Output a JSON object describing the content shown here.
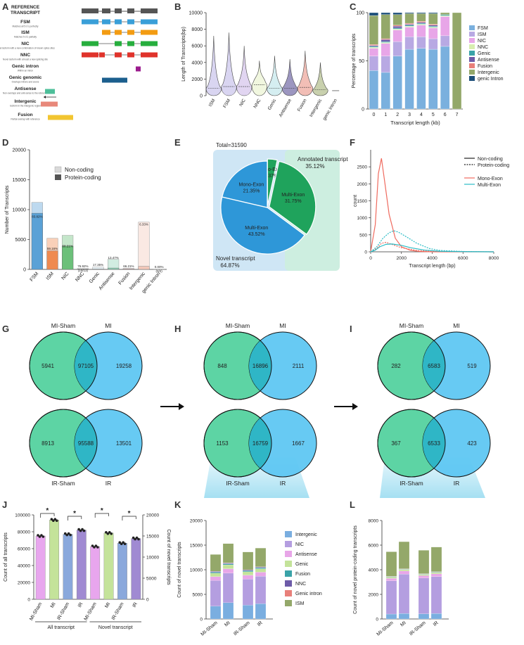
{
  "panel_labels": [
    "A",
    "B",
    "C",
    "D",
    "E",
    "F",
    "G",
    "H",
    "I",
    "J",
    "K",
    "L"
  ],
  "panelA": {
    "title": "REFERENCE TRANSCRIPT",
    "rows": [
      {
        "name": "FSM",
        "desc": "Matches all 5-3 ́s perfectly",
        "color": "#3a9fd8"
      },
      {
        "name": "ISM",
        "desc": "Matches 5-3 ́s partially",
        "color": "#f39c12"
      },
      {
        "name": "NIC",
        "desc": "Novel isoform with a new combination of known splice sites",
        "color": "#27ae3e"
      },
      {
        "name": "NNC",
        "desc": "Novel isoform with at least a new splicing site",
        "color": "#e0332b"
      },
      {
        "name": "Genic intron",
        "desc": "Within an intron",
        "color": "#9b1b8e"
      },
      {
        "name": "Genic genomic",
        "desc": "Overlaps introns and exons",
        "color": "#1c5f8e"
      },
      {
        "name": "Antisense",
        "desc": "Non-overlaps and anti-sense to the reference",
        "color": "#4dbf9a"
      },
      {
        "name": "Intergenic",
        "desc": "Isoform in the intergenic region",
        "color": "#e8887a"
      },
      {
        "name": "Fusion",
        "desc": "Partial overlap with reference",
        "color": "#f2c531"
      }
    ]
  },
  "chart_data": [
    {
      "id": "B",
      "type": "violin",
      "title": "",
      "ylabel": "Length of Transcripts(bp)",
      "ylim": [
        0,
        10000
      ],
      "yticks": [
        "0",
        "2000",
        "4000",
        "6000",
        "8000",
        "10000"
      ],
      "categories": [
        "ISM",
        "FSM",
        "NIC",
        "NNC",
        "Genic",
        "Antisense",
        "Fusion",
        "Intergenic",
        "genic Intron"
      ],
      "medians": [
        900,
        1100,
        1100,
        1300,
        900,
        900,
        1000,
        700,
        600
      ],
      "max": [
        7200,
        7600,
        6000,
        4200,
        4800,
        4400,
        5400,
        4000,
        700
      ],
      "colors": [
        "#b9b3e6",
        "#b9b3e6",
        "#c9b3e6",
        "#e6f0c4",
        "#b3e0e6",
        "#4a3f8c",
        "#e8887a",
        "#9aaa6a",
        "#888888"
      ]
    },
    {
      "id": "C",
      "type": "stacked_bar",
      "ylabel": "Percentage of transcripts",
      "xlabel": "Transcript length (kb)",
      "categories": [
        "0",
        "1",
        "2",
        "3",
        "4",
        "5",
        "6",
        "7"
      ],
      "ylim": [
        0,
        100
      ],
      "yticks": [
        "0",
        "50",
        "100"
      ],
      "series": [
        {
          "name": "FSM",
          "color": "#7ab0de",
          "values": [
            40,
            38,
            55,
            62,
            63,
            62,
            65,
            0
          ]
        },
        {
          "name": "ISM",
          "color": "#b8a9e3",
          "values": [
            15,
            17,
            15,
            13,
            12,
            11,
            11,
            0
          ]
        },
        {
          "name": "NIC",
          "color": "#e8a6e8",
          "values": [
            8,
            13,
            12,
            10,
            12,
            11,
            20,
            0
          ]
        },
        {
          "name": "NNC",
          "color": "#d8eeb0",
          "values": [
            1,
            1,
            1,
            1,
            1,
            1,
            1,
            0
          ]
        },
        {
          "name": "Genic",
          "color": "#3aa3a8",
          "values": [
            1,
            1,
            1,
            1,
            1,
            1,
            1,
            0
          ]
        },
        {
          "name": "Antisense",
          "color": "#6d5ba8",
          "values": [
            1,
            2,
            2,
            1,
            1,
            1,
            0,
            0
          ]
        },
        {
          "name": "Fusion",
          "color": "#e8807a",
          "values": [
            1,
            1,
            1,
            1,
            1,
            1,
            0,
            0
          ]
        },
        {
          "name": "Intergenic",
          "color": "#94a86a",
          "values": [
            30,
            25,
            11,
            10,
            8,
            11,
            2,
            100
          ]
        },
        {
          "name": "genic Intron",
          "color": "#1d4f7a",
          "values": [
            3,
            2,
            2,
            1,
            1,
            1,
            0,
            0
          ]
        }
      ],
      "legend": [
        "FSM",
        "ISM",
        "NIC",
        "NNC",
        "Genic",
        "Antisense",
        "Fusion",
        "Intergenic",
        "genic Intron"
      ]
    },
    {
      "id": "D",
      "type": "bar",
      "ylabel": "Number of Transcripts",
      "ylim": [
        0,
        20000
      ],
      "yticks": [
        "0",
        "5000",
        "10000",
        "15000",
        "20000"
      ],
      "legend": [
        "Non-coding",
        "Protein-coding"
      ],
      "categories": [
        "FSM",
        "ISM",
        "NIC",
        "NNC",
        "Genic",
        "Antisense",
        "Fusion",
        "Intergenic",
        "genic Intron"
      ],
      "total": [
        11200,
        5200,
        5700,
        130,
        400,
        1700,
        150,
        7900,
        10
      ],
      "coding": [
        9400,
        3100,
        3900,
        100,
        60,
        230,
        100,
        500,
        0
      ],
      "colors": [
        "#5aa1d6",
        "#ef8a50",
        "#6cc07a",
        "#cccccc",
        "#c8dfe8",
        "#8fcfb5",
        "#e8b3b0",
        "#f2c7b9",
        "#cccccc"
      ],
      "labels": [
        "83.82%",
        "59.16%",
        "68.21%",
        "76.92% (10/13)",
        "17.35%",
        "13.47%",
        "66.21%",
        "6.33%",
        "0.00% (0/2)"
      ]
    },
    {
      "id": "E",
      "type": "pie",
      "title": "Total=31590",
      "slices": [
        {
          "label": "Mono-Exon",
          "value": 3.37
        },
        {
          "label": "Multi-Exon",
          "value": 31.75
        },
        {
          "label": "Multi-Exon",
          "value": 43.52
        },
        {
          "label": "Mono-Exon",
          "value": 21.35
        }
      ],
      "slice_pcts": [
        "3.37%",
        "31.75%",
        "43.52%",
        "21.35%"
      ],
      "annotated": {
        "label": "Annotated transcript",
        "pct": "35.12%"
      },
      "novel": {
        "label": "Novel transcript",
        "pct": "64.87%"
      }
    },
    {
      "id": "F",
      "type": "line",
      "xlabel": "Transcript length (bp)",
      "ylabel": "count",
      "xlim": [
        0,
        8000
      ],
      "ylim": [
        0,
        3000
      ],
      "xticks": [
        "0",
        "2000",
        "4000",
        "6000",
        "8000"
      ],
      "yticks": [
        "0",
        "500",
        "1000",
        "1500",
        "2000",
        "2500"
      ],
      "legend": [
        "Non-coding",
        "Protein-coding",
        "Mono-Exon",
        "Multi-Exon"
      ],
      "series": [
        {
          "name": "Mono-Exon non-coding",
          "x": [
            0,
            300,
            500,
            700,
            900,
            1200,
            1600,
            2000,
            2600,
            3200,
            4000,
            8000
          ],
          "y": [
            0,
            800,
            2300,
            2750,
            2100,
            1100,
            400,
            150,
            40,
            10,
            0,
            0
          ]
        },
        {
          "name": "Mono-Exon protein-coding",
          "x": [
            0,
            400,
            700,
            1000,
            1500,
            2000,
            3000,
            4000,
            8000
          ],
          "y": [
            0,
            100,
            250,
            280,
            200,
            120,
            40,
            10,
            0
          ]
        },
        {
          "name": "Multi-Exon non-coding",
          "x": [
            0,
            300,
            600,
            1000,
            1400,
            2000,
            2600,
            3500,
            4500,
            6000,
            8000
          ],
          "y": [
            0,
            50,
            150,
            220,
            230,
            190,
            120,
            50,
            15,
            5,
            0
          ]
        },
        {
          "name": "Multi-Exon protein-coding",
          "x": [
            0,
            400,
            800,
            1200,
            1500,
            1800,
            2400,
            3000,
            3800,
            4500,
            6000,
            8000
          ],
          "y": [
            0,
            150,
            400,
            560,
            620,
            580,
            420,
            250,
            100,
            40,
            10,
            0
          ]
        }
      ]
    }
  ],
  "venns": {
    "G1": {
      "left": "MI-Sham",
      "right": "MI",
      "a": "5941",
      "ab": "97105",
      "b": "19258"
    },
    "G2": {
      "left": "IR-Sham",
      "right": "IR",
      "a": "8913",
      "ab": "95588",
      "b": "13501"
    },
    "H1": {
      "left": "MI-Sham",
      "right": "MI",
      "a": "848",
      "ab": "16896",
      "b": "2111"
    },
    "H2": {
      "left": "IR-Sham",
      "right": "IR",
      "a": "1153",
      "ab": "16759",
      "b": "1667"
    },
    "I1": {
      "left": "MI-Sham",
      "right": "MI",
      "a": "282",
      "ab": "6583",
      "b": "519"
    },
    "I2": {
      "left": "IR-Sham",
      "right": "IR",
      "a": "367",
      "ab": "6533",
      "b": "423"
    }
  },
  "panelJ": {
    "ylabel_left": "Count of all transcripts",
    "ylabel_right": "Count of novel transcripts",
    "yticks_left": [
      "0",
      "20000",
      "40000",
      "60000",
      "80000",
      "100000"
    ],
    "yticks_right": [
      "0",
      "5000",
      "10000",
      "15000",
      "20000"
    ],
    "groups": [
      "All transcript",
      "Novel transcript"
    ],
    "categories": [
      "MI-Sham",
      "MI",
      "IR-Sham",
      "IR",
      "MI-Sham",
      "MI",
      "IR-Sham",
      "IR"
    ],
    "values": [
      75000,
      94000,
      77000,
      82000,
      12500,
      15700,
      13300,
      14400
    ],
    "colors": [
      "#e8a6ee",
      "#c4e39a",
      "#8aa8dc",
      "#a08ad2",
      "#e8a6ee",
      "#c4e39a",
      "#8aa8dc",
      "#a08ad2"
    ],
    "star": "*"
  },
  "panelK": {
    "ylabel": "Count of novel transcripts",
    "yticks": [
      "0",
      "5000",
      "10000",
      "15000",
      "20000"
    ],
    "categories": [
      "MI-Sham",
      "MI",
      "IR-Sham",
      "IR"
    ],
    "legend": [
      "Intergenic",
      "NIC",
      "Antisense",
      "Genic",
      "Fusion",
      "NNC",
      "Genic intron",
      "ISM"
    ],
    "legend_colors": [
      "#7aaee0",
      "#b49ee0",
      "#e8a6e8",
      "#c4e39a",
      "#3aa3a8",
      "#6d5ba8",
      "#e8807a",
      "#94a86a"
    ]
  },
  "panelL": {
    "ylabel": "Count of novel protein-coding transcripts",
    "yticks": [
      "0",
      "2000",
      "4000",
      "6000",
      "8000"
    ],
    "categories": [
      "MI-Sham",
      "MI",
      "IR-Sham",
      "IR"
    ]
  }
}
